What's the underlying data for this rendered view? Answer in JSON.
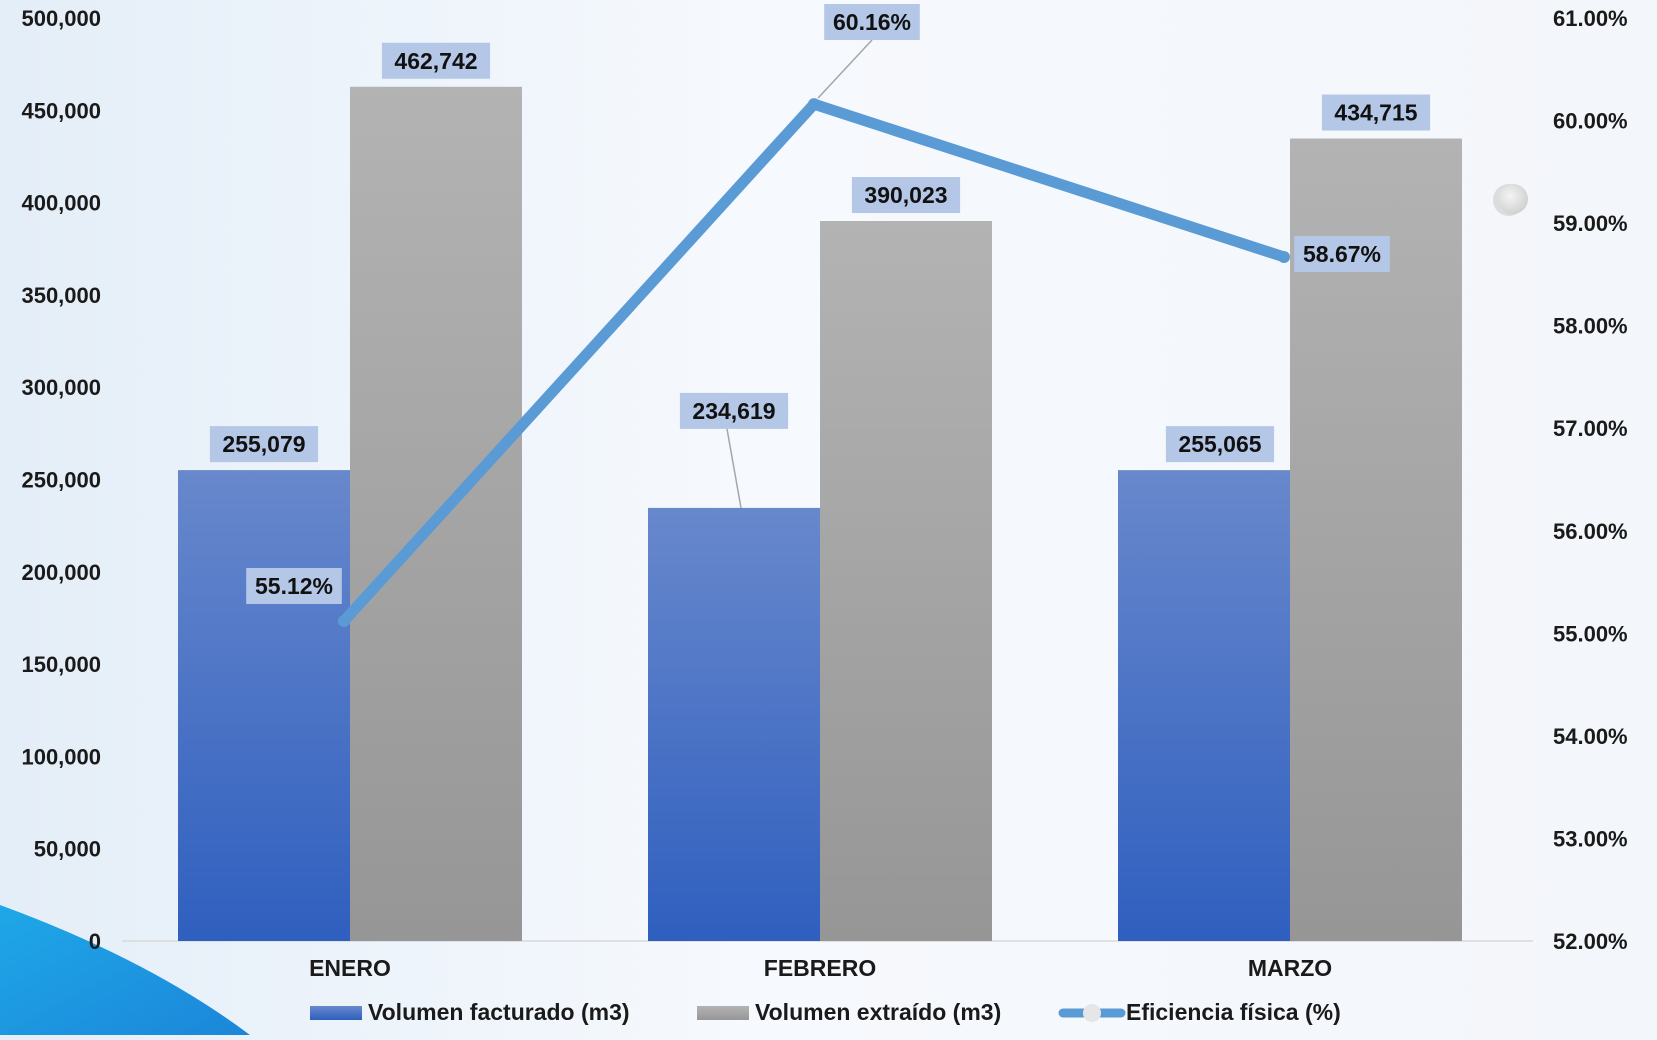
{
  "chart_data": {
    "type": "bar",
    "categories": [
      "ENERO",
      "FEBRERO",
      "MARZO"
    ],
    "series": [
      {
        "name": "Volumen facturado (m3)",
        "type": "bar",
        "axis": "left",
        "values": [
          255079,
          234619,
          255065
        ],
        "labels": [
          "255,079",
          "234,619",
          "255,065"
        ],
        "color": "#3f6fc9"
      },
      {
        "name": "Volumen extraído (m3)",
        "type": "bar",
        "axis": "left",
        "values": [
          462742,
          390023,
          434715
        ],
        "labels": [
          "462,742",
          "390,023",
          "434,715"
        ],
        "color": "#a6a6a6"
      },
      {
        "name": "Eficiencia física (%)",
        "type": "line",
        "axis": "right",
        "values": [
          55.12,
          60.16,
          58.67
        ],
        "labels": [
          "55.12%",
          "60.16%",
          "58.67%"
        ],
        "color": "#5b9bd5"
      }
    ],
    "y_left": {
      "min": 0,
      "max": 500000,
      "ticks": [
        "0",
        "50,000",
        "100,000",
        "150,000",
        "200,000",
        "250,000",
        "300,000",
        "350,000",
        "400,000",
        "450,000",
        "500,000"
      ]
    },
    "y_right": {
      "min": 52,
      "max": 61,
      "ticks": [
        "52.00%",
        "53.00%",
        "54.00%",
        "55.00%",
        "56.00%",
        "57.00%",
        "58.00%",
        "59.00%",
        "60.00%",
        "61.00%"
      ]
    },
    "legend_position": "bottom",
    "grid": false,
    "label_box_color": "#b4c7e7"
  }
}
